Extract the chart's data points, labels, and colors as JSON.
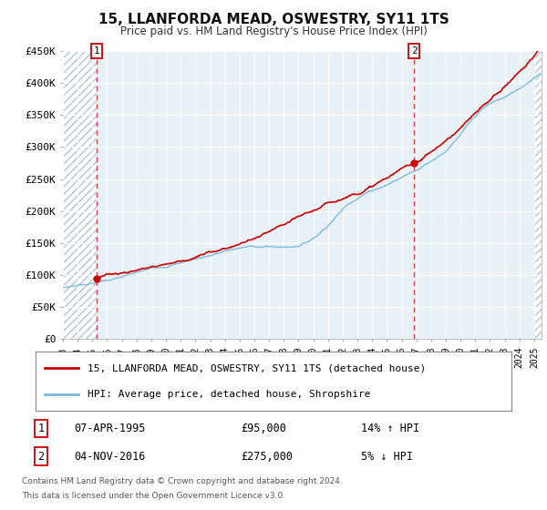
{
  "title": "15, LLANFORDA MEAD, OSWESTRY, SY11 1TS",
  "subtitle": "Price paid vs. HM Land Registry's House Price Index (HPI)",
  "sale1_t": 1995.27,
  "sale1_p": 95000,
  "sale2_t": 2016.84,
  "sale2_p": 275000,
  "hpi_color": "#7ab8de",
  "price_color": "#cc0000",
  "vline_color": "#dd4444",
  "dot_color": "#cc0000",
  "ylim_min": 0,
  "ylim_max": 450000,
  "xlim_min": 1993.0,
  "xlim_max": 2025.5,
  "ytick_values": [
    0,
    50000,
    100000,
    150000,
    200000,
    250000,
    300000,
    350000,
    400000,
    450000
  ],
  "ytick_labels": [
    "£0",
    "£50K",
    "£100K",
    "£150K",
    "£200K",
    "£250K",
    "£300K",
    "£350K",
    "£400K",
    "£450K"
  ],
  "xtick_years": [
    1993,
    1994,
    1995,
    1996,
    1997,
    1998,
    1999,
    2000,
    2001,
    2002,
    2003,
    2004,
    2005,
    2006,
    2007,
    2008,
    2009,
    2010,
    2011,
    2012,
    2013,
    2014,
    2015,
    2016,
    2017,
    2018,
    2019,
    2020,
    2021,
    2022,
    2023,
    2024,
    2025
  ],
  "legend_line1": "15, LLANFORDA MEAD, OSWESTRY, SY11 1TS (detached house)",
  "legend_line2": "HPI: Average price, detached house, Shropshire",
  "table_row1": [
    "1",
    "07-APR-1995",
    "£95,000",
    "14% ↑ HPI"
  ],
  "table_row2": [
    "2",
    "04-NOV-2016",
    "£275,000",
    "5% ↓ HPI"
  ],
  "footnote1": "Contains HM Land Registry data © Crown copyright and database right 2024.",
  "footnote2": "This data is licensed under the Open Government Licence v3.0.",
  "background_color": "#ffffff",
  "plot_bg_color": "#e8f0f8",
  "hatch_color": "#b0c4d8",
  "grid_color": "#ffffff"
}
